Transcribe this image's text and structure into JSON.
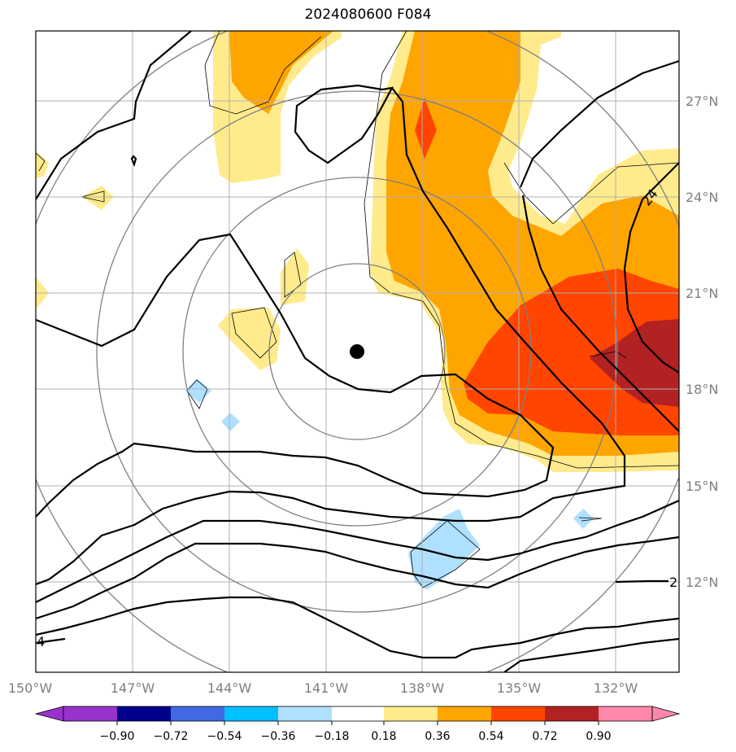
{
  "title": "2024080600 F084",
  "map": {
    "lon_labels": [
      "150°W",
      "147°W",
      "144°W",
      "141°W",
      "138°W",
      "135°W",
      "132°W"
    ],
    "lat_labels": [
      "27°N",
      "24°N",
      "21°N",
      "18°N",
      "15°N",
      "12°N"
    ],
    "storm_center": {
      "lon": "139.8°W",
      "lat": "19.2°N",
      "marker": "black-dot"
    },
    "contour_labels": [
      "24",
      "2",
      "4"
    ],
    "fill_colors": [
      "#ffeb8c",
      "#ffa500",
      "#ff4500",
      "#b22222",
      "#b0e0ff",
      "#87cefa"
    ]
  },
  "colorbar": {
    "ticks": [
      "−0.90",
      "−0.72",
      "−0.54",
      "−0.36",
      "−0.18",
      "0.18",
      "0.36",
      "0.54",
      "0.72",
      "0.90"
    ],
    "colors": [
      "#9932cc",
      "#00008b",
      "#4169e1",
      "#00bfff",
      "#b0e0ff",
      "#ffffff",
      "#ffeb8c",
      "#ffa500",
      "#ff4500",
      "#b22222",
      "#ff88aa"
    ]
  }
}
